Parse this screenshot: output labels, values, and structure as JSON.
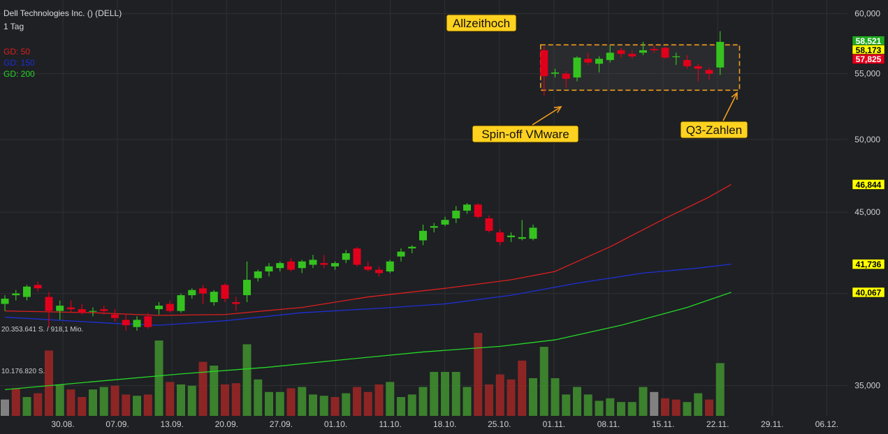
{
  "header": {
    "title": "Dell Technologies Inc. () (DELL)",
    "period": "1 Tag"
  },
  "legend": [
    {
      "label": "GD: 50",
      "color": "#dd1f1f"
    },
    {
      "label": "GD: 150",
      "color": "#1f2fd4"
    },
    {
      "label": "GD: 200",
      "color": "#26d926"
    }
  ],
  "volume_labels": {
    "max": "20.353.641 S. / 918,1 Mio.",
    "mid": "10.176.820 S."
  },
  "annotations": {
    "ath": "Allzeithoch",
    "spinoff": "Spin-off VMware",
    "q3": "Q3-Zahlen"
  },
  "price_badges": [
    {
      "label": "58,521",
      "value": 58.521,
      "bg": "#22aa22",
      "fg": "#ffffff"
    },
    {
      "label": "58,173",
      "value": 58.173,
      "bg": "#ffff00",
      "fg": "#000000"
    },
    {
      "label": "57,825",
      "value": 57.825,
      "bg": "#e0001b",
      "fg": "#ffffff"
    },
    {
      "label": "46,844",
      "value": 46.844,
      "bg": "#ffff00",
      "fg": "#000000"
    },
    {
      "label": "41,736",
      "value": 41.736,
      "bg": "#ffff00",
      "fg": "#000000"
    },
    {
      "label": "40,067",
      "value": 40.067,
      "bg": "#ffff00",
      "fg": "#000000"
    }
  ],
  "chart_data": {
    "type": "candlestick",
    "title": "Dell Technologies Inc. () (DELL)",
    "interval": "1 Tag",
    "yscale": "log",
    "ylim": [
      33500,
      61200
    ],
    "y_ticks": [
      {
        "value": 60000,
        "label": "60,000"
      },
      {
        "value": 55000,
        "label": "55,000"
      },
      {
        "value": 50000,
        "label": "50,000"
      },
      {
        "value": 45000,
        "label": "45,000"
      },
      {
        "value": 40000,
        "label": ""
      },
      {
        "value": 35000,
        "label": "35,000"
      }
    ],
    "x_ticks": [
      "30.08.",
      "07.09.",
      "13.09.",
      "20.09.",
      "27.09.",
      "01.10.",
      "11.10.",
      "18.10.",
      "25.10.",
      "01.11.",
      "08.11.",
      "15.11.",
      "22.11.",
      "29.11.",
      "06.12."
    ],
    "candles": [
      {
        "o": 39400,
        "h": 39900,
        "l": 39000,
        "c": 39700
      },
      {
        "o": 39900,
        "h": 40200,
        "l": 39600,
        "c": 40000
      },
      {
        "o": 39800,
        "h": 40500,
        "l": 39600,
        "c": 40400
      },
      {
        "o": 40500,
        "h": 40700,
        "l": 40100,
        "c": 40300
      },
      {
        "o": 39800,
        "h": 40100,
        "l": 38100,
        "c": 39000
      },
      {
        "o": 39000,
        "h": 39600,
        "l": 38500,
        "c": 39300
      },
      {
        "o": 39200,
        "h": 39600,
        "l": 38900,
        "c": 39100
      },
      {
        "o": 39100,
        "h": 39400,
        "l": 38800,
        "c": 38900
      },
      {
        "o": 39000,
        "h": 39200,
        "l": 38700,
        "c": 39000
      },
      {
        "o": 39100,
        "h": 39300,
        "l": 38800,
        "c": 39000
      },
      {
        "o": 38800,
        "h": 39100,
        "l": 38400,
        "c": 38600
      },
      {
        "o": 38500,
        "h": 38800,
        "l": 37900,
        "c": 38200
      },
      {
        "o": 38100,
        "h": 38700,
        "l": 37900,
        "c": 38500
      },
      {
        "o": 38700,
        "h": 38900,
        "l": 38000,
        "c": 38100
      },
      {
        "o": 39100,
        "h": 39500,
        "l": 38800,
        "c": 39300
      },
      {
        "o": 39400,
        "h": 39600,
        "l": 38900,
        "c": 39000
      },
      {
        "o": 39000,
        "h": 40000,
        "l": 38900,
        "c": 39900
      },
      {
        "o": 39900,
        "h": 40300,
        "l": 39700,
        "c": 40200
      },
      {
        "o": 40300,
        "h": 40500,
        "l": 39400,
        "c": 40000
      },
      {
        "o": 39500,
        "h": 40200,
        "l": 39300,
        "c": 40100
      },
      {
        "o": 40500,
        "h": 40600,
        "l": 39500,
        "c": 39700
      },
      {
        "o": 39500,
        "h": 39800,
        "l": 39000,
        "c": 39400
      },
      {
        "o": 39900,
        "h": 41900,
        "l": 39500,
        "c": 40800
      },
      {
        "o": 40900,
        "h": 41400,
        "l": 40700,
        "c": 41300
      },
      {
        "o": 41300,
        "h": 41800,
        "l": 41000,
        "c": 41600
      },
      {
        "o": 41500,
        "h": 41900,
        "l": 41300,
        "c": 41800
      },
      {
        "o": 41900,
        "h": 42100,
        "l": 41300,
        "c": 41400
      },
      {
        "o": 41500,
        "h": 42000,
        "l": 41200,
        "c": 41900
      },
      {
        "o": 41700,
        "h": 42300,
        "l": 41500,
        "c": 42000
      },
      {
        "o": 41800,
        "h": 42300,
        "l": 41500,
        "c": 41700
      },
      {
        "o": 41600,
        "h": 41900,
        "l": 41400,
        "c": 41800
      },
      {
        "o": 42000,
        "h": 42600,
        "l": 41800,
        "c": 42400
      },
      {
        "o": 42700,
        "h": 42800,
        "l": 41600,
        "c": 41700
      },
      {
        "o": 41600,
        "h": 41900,
        "l": 41300,
        "c": 41400
      },
      {
        "o": 41400,
        "h": 41600,
        "l": 41000,
        "c": 41200
      },
      {
        "o": 41300,
        "h": 42000,
        "l": 41200,
        "c": 41900
      },
      {
        "o": 42200,
        "h": 42700,
        "l": 41900,
        "c": 42500
      },
      {
        "o": 42700,
        "h": 42900,
        "l": 42400,
        "c": 42800
      },
      {
        "o": 43200,
        "h": 44200,
        "l": 42900,
        "c": 43800
      },
      {
        "o": 44000,
        "h": 44300,
        "l": 43700,
        "c": 44100
      },
      {
        "o": 44200,
        "h": 44700,
        "l": 44100,
        "c": 44500
      },
      {
        "o": 44600,
        "h": 45400,
        "l": 44300,
        "c": 45100
      },
      {
        "o": 45100,
        "h": 45600,
        "l": 44900,
        "c": 45500
      },
      {
        "o": 45500,
        "h": 45600,
        "l": 44600,
        "c": 44700
      },
      {
        "o": 44600,
        "h": 44800,
        "l": 43700,
        "c": 43800
      },
      {
        "o": 43700,
        "h": 43900,
        "l": 42900,
        "c": 43100
      },
      {
        "o": 43400,
        "h": 43700,
        "l": 43100,
        "c": 43500
      },
      {
        "o": 43300,
        "h": 44500,
        "l": 43200,
        "c": 43400
      },
      {
        "o": 43300,
        "h": 44200,
        "l": 43200,
        "c": 44000
      },
      {
        "o": 56900,
        "h": 57200,
        "l": 53300,
        "c": 54800
      },
      {
        "o": 55000,
        "h": 55400,
        "l": 54700,
        "c": 55100
      },
      {
        "o": 55000,
        "h": 55200,
        "l": 53900,
        "c": 54600
      },
      {
        "o": 54700,
        "h": 56400,
        "l": 54400,
        "c": 56300
      },
      {
        "o": 56200,
        "h": 56700,
        "l": 55700,
        "c": 55900
      },
      {
        "o": 55800,
        "h": 56400,
        "l": 55100,
        "c": 56200
      },
      {
        "o": 56100,
        "h": 57300,
        "l": 55900,
        "c": 56700
      },
      {
        "o": 56900,
        "h": 57100,
        "l": 56300,
        "c": 56600
      },
      {
        "o": 56600,
        "h": 56900,
        "l": 56200,
        "c": 56400
      },
      {
        "o": 56700,
        "h": 57600,
        "l": 56500,
        "c": 56900
      },
      {
        "o": 57000,
        "h": 57300,
        "l": 56700,
        "c": 56900
      },
      {
        "o": 57100,
        "h": 57200,
        "l": 56200,
        "c": 56300
      },
      {
        "o": 56400,
        "h": 56700,
        "l": 55700,
        "c": 56400
      },
      {
        "o": 56100,
        "h": 56500,
        "l": 55400,
        "c": 55600
      },
      {
        "o": 55600,
        "h": 55800,
        "l": 54400,
        "c": 55400
      },
      {
        "o": 55300,
        "h": 55500,
        "l": 54500,
        "c": 55000
      },
      {
        "o": 55500,
        "h": 58500,
        "l": 54900,
        "c": 57600
      }
    ],
    "volumes": [
      0.13,
      0.22,
      0.15,
      0.18,
      0.52,
      0.25,
      0.21,
      0.15,
      0.21,
      0.23,
      0.24,
      0.17,
      0.16,
      0.17,
      0.6,
      0.27,
      0.25,
      0.24,
      0.43,
      0.4,
      0.25,
      0.26,
      0.57,
      0.29,
      0.19,
      0.19,
      0.22,
      0.23,
      0.17,
      0.16,
      0.15,
      0.18,
      0.23,
      0.19,
      0.25,
      0.27,
      0.15,
      0.17,
      0.23,
      0.35,
      0.35,
      0.35,
      0.23,
      0.66,
      0.25,
      0.33,
      0.29,
      0.44,
      0.3,
      0.55,
      0.3,
      0.17,
      0.23,
      0.17,
      0.12,
      0.14,
      0.11,
      0.11,
      0.23,
      0.19,
      0.14,
      0.13,
      0.11,
      0.18,
      0.13,
      0.42
    ],
    "volume_colors": [
      "gray",
      "red",
      "green",
      "red",
      "red",
      "green",
      "red",
      "red",
      "green",
      "green",
      "red",
      "red",
      "green",
      "red",
      "green",
      "red",
      "green",
      "green",
      "red",
      "green",
      "red",
      "red",
      "green",
      "green",
      "green",
      "green",
      "red",
      "green",
      "green",
      "green",
      "red",
      "green",
      "red",
      "red",
      "red",
      "green",
      "green",
      "green",
      "green",
      "green",
      "green",
      "green",
      "green",
      "red",
      "red",
      "red",
      "red",
      "red",
      "green",
      "green",
      "green",
      "green",
      "green",
      "green",
      "green",
      "green",
      "green",
      "green",
      "green",
      "gray",
      "red",
      "red",
      "green",
      "green",
      "red",
      "green"
    ],
    "ma_series": [
      {
        "name": "GD: 50",
        "color": "#dd1f1f",
        "points": [
          [
            0,
            39000
          ],
          [
            8,
            38900
          ],
          [
            14,
            38750
          ],
          [
            20,
            38800
          ],
          [
            27,
            39200
          ],
          [
            33,
            39800
          ],
          [
            40,
            40300
          ],
          [
            46,
            40800
          ],
          [
            50,
            41300
          ],
          [
            55,
            42800
          ],
          [
            60,
            44600
          ],
          [
            64,
            46000
          ],
          [
            66,
            46844
          ]
        ]
      },
      {
        "name": "GD: 150",
        "color": "#1f2fd4",
        "points": [
          [
            0,
            38650
          ],
          [
            10,
            38300
          ],
          [
            14,
            38200
          ],
          [
            20,
            38450
          ],
          [
            27,
            38900
          ],
          [
            34,
            39150
          ],
          [
            40,
            39400
          ],
          [
            46,
            39900
          ],
          [
            52,
            40600
          ],
          [
            58,
            41200
          ],
          [
            63,
            41500
          ],
          [
            66,
            41736
          ]
        ]
      },
      {
        "name": "GD: 200",
        "color": "#26d926",
        "points": [
          [
            0,
            34800
          ],
          [
            8,
            35200
          ],
          [
            16,
            35600
          ],
          [
            24,
            35950
          ],
          [
            30,
            36300
          ],
          [
            38,
            36750
          ],
          [
            45,
            37050
          ],
          [
            50,
            37400
          ],
          [
            56,
            38200
          ],
          [
            62,
            39200
          ],
          [
            66,
            40067
          ]
        ]
      }
    ],
    "range_box": {
      "from": 49,
      "to": 66,
      "low": 53700,
      "high": 57350
    }
  }
}
